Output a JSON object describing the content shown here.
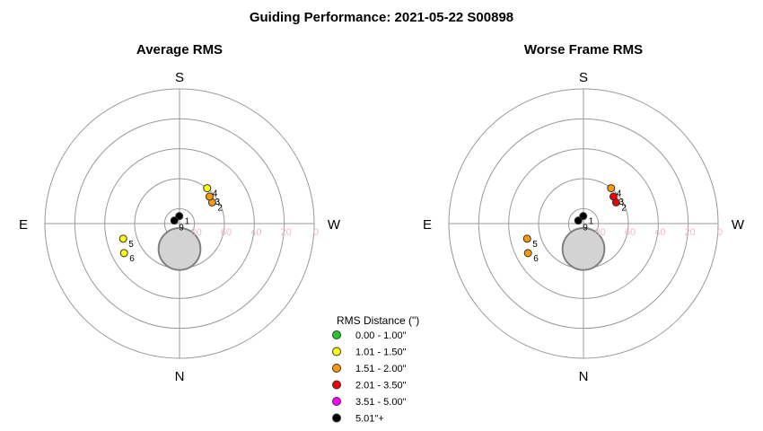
{
  "chart_data": {
    "type": "scatter",
    "projection": "polar-sky",
    "title": "Guiding Performance: 2021-05-22 S00898",
    "radial_axis": {
      "quantity": "altitude",
      "ticks": [
        80,
        60,
        40,
        20,
        0
      ],
      "range": [
        90,
        0
      ]
    },
    "directions": {
      "top": "S",
      "bottom": "N",
      "left": "E",
      "right": "W"
    },
    "legend": {
      "title": "RMS Distance (\")",
      "position": "bottom-center",
      "entries": [
        {
          "label": "0.00 - 1.00\"",
          "color": "#22cc22"
        },
        {
          "label": "1.01 - 1.50\"",
          "color": "#ffff00"
        },
        {
          "label": "1.51 - 2.00\"",
          "color": "#ff9900"
        },
        {
          "label": "2.01 - 3.50\"",
          "color": "#ee0000"
        },
        {
          "label": "3.51 - 5.00\"",
          "color": "#ff00ff"
        },
        {
          "label": "5.01\"+",
          "color": "#000000"
        }
      ]
    },
    "zenith_exclusion": {
      "fill": "#d3d3d3",
      "stroke": "#808080",
      "center_alt": 73,
      "center_side": "N",
      "radius_deg": 14
    },
    "charts": [
      {
        "title": "Average RMS",
        "points": [
          {
            "label": "1",
            "alt": 85,
            "az": 178,
            "color": "#000000"
          },
          {
            "label": "9",
            "alt": 86,
            "az": 120,
            "color": "#000000"
          },
          {
            "label": "2",
            "alt": 64,
            "az": 237,
            "color": "#ff9900"
          },
          {
            "label": "3",
            "alt": 63,
            "az": 228,
            "color": "#ff9900"
          },
          {
            "label": "4",
            "alt": 60,
            "az": 218,
            "color": "#ffff00"
          },
          {
            "label": "5",
            "alt": 51,
            "az": 75,
            "color": "#ffff00"
          },
          {
            "label": "6",
            "alt": 48,
            "az": 62,
            "color": "#ffff00"
          }
        ]
      },
      {
        "title": "Worse Frame RMS",
        "points": [
          {
            "label": "1",
            "alt": 85,
            "az": 178,
            "color": "#000000"
          },
          {
            "label": "9",
            "alt": 86,
            "az": 120,
            "color": "#000000"
          },
          {
            "label": "2",
            "alt": 64,
            "az": 237,
            "color": "#ee0000"
          },
          {
            "label": "3",
            "alt": 63,
            "az": 228,
            "color": "#ee0000"
          },
          {
            "label": "4",
            "alt": 60,
            "az": 218,
            "color": "#ff9900"
          },
          {
            "label": "5",
            "alt": 51,
            "az": 75,
            "color": "#ff9900"
          },
          {
            "label": "6",
            "alt": 48,
            "az": 62,
            "color": "#ff9900"
          }
        ]
      }
    ]
  }
}
